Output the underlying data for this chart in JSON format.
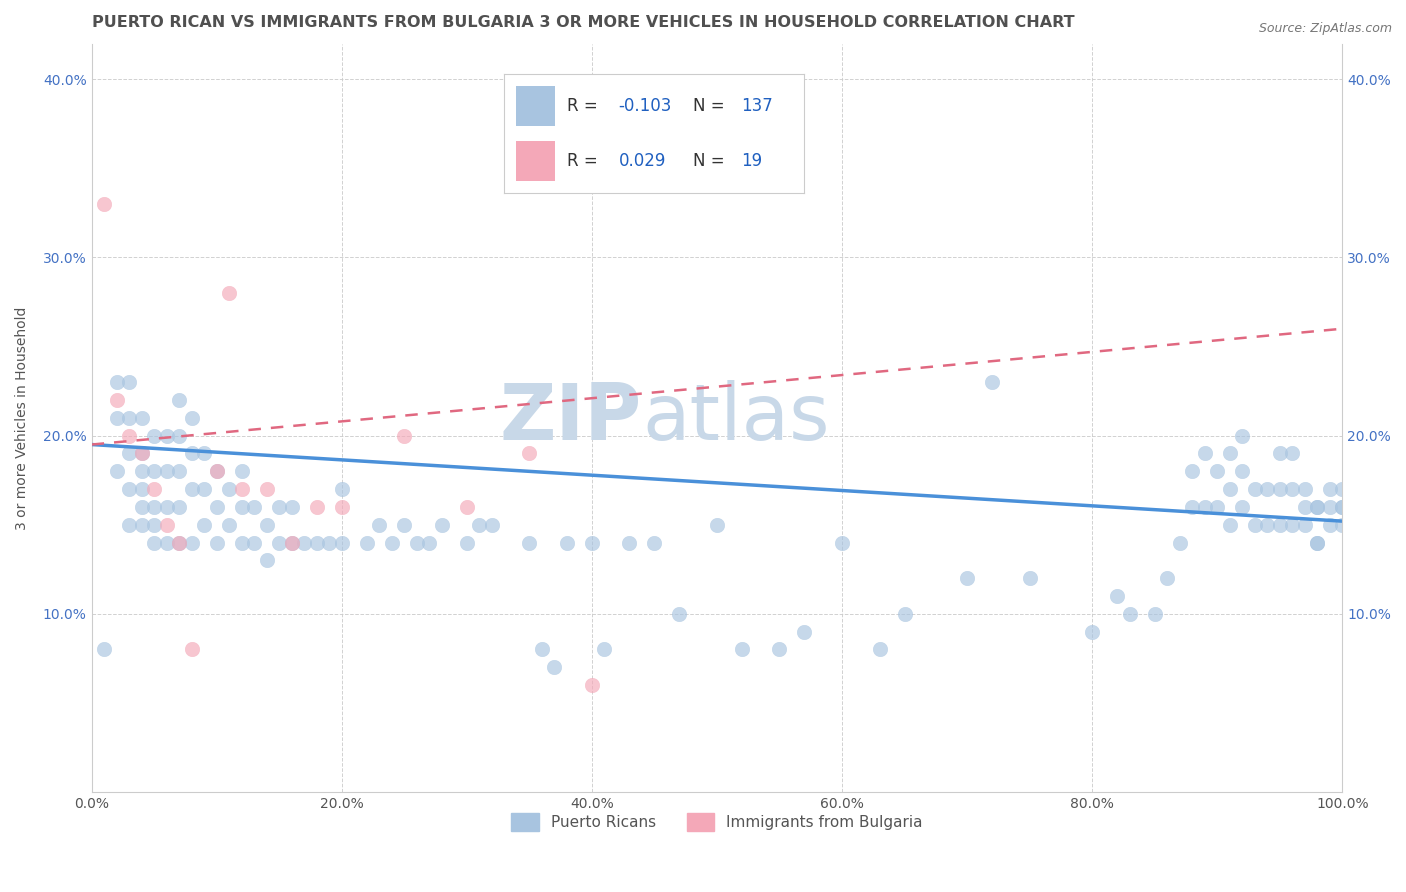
{
  "title": "PUERTO RICAN VS IMMIGRANTS FROM BULGARIA 3 OR MORE VEHICLES IN HOUSEHOLD CORRELATION CHART",
  "source": "Source: ZipAtlas.com",
  "ylabel": "3 or more Vehicles in Household",
  "xlim": [
    0.0,
    1.0
  ],
  "ylim": [
    0.0,
    0.42
  ],
  "xtick_vals": [
    0.0,
    0.2,
    0.4,
    0.6,
    0.8,
    1.0
  ],
  "xtick_labels": [
    "0.0%",
    "20.0%",
    "40.0%",
    "60.0%",
    "80.0%",
    "100.0%"
  ],
  "ytick_vals": [
    0.0,
    0.1,
    0.2,
    0.3,
    0.4
  ],
  "ytick_labels": [
    "",
    "10.0%",
    "20.0%",
    "30.0%",
    "40.0%"
  ],
  "blue_scatter_x": [
    0.01,
    0.02,
    0.02,
    0.02,
    0.03,
    0.03,
    0.03,
    0.03,
    0.03,
    0.04,
    0.04,
    0.04,
    0.04,
    0.04,
    0.04,
    0.05,
    0.05,
    0.05,
    0.05,
    0.05,
    0.06,
    0.06,
    0.06,
    0.06,
    0.07,
    0.07,
    0.07,
    0.07,
    0.07,
    0.08,
    0.08,
    0.08,
    0.08,
    0.09,
    0.09,
    0.09,
    0.1,
    0.1,
    0.1,
    0.11,
    0.11,
    0.12,
    0.12,
    0.12,
    0.13,
    0.13,
    0.14,
    0.14,
    0.15,
    0.15,
    0.16,
    0.16,
    0.17,
    0.18,
    0.19,
    0.2,
    0.2,
    0.22,
    0.23,
    0.24,
    0.25,
    0.26,
    0.27,
    0.28,
    0.3,
    0.31,
    0.32,
    0.35,
    0.36,
    0.37,
    0.38,
    0.4,
    0.41,
    0.43,
    0.45,
    0.47,
    0.5,
    0.52,
    0.55,
    0.57,
    0.6,
    0.63,
    0.65,
    0.7,
    0.72,
    0.75,
    0.8,
    0.82,
    0.83,
    0.85,
    0.86,
    0.87,
    0.88,
    0.88,
    0.89,
    0.89,
    0.9,
    0.9,
    0.91,
    0.91,
    0.91,
    0.92,
    0.92,
    0.92,
    0.93,
    0.93,
    0.94,
    0.94,
    0.95,
    0.95,
    0.95,
    0.96,
    0.96,
    0.96,
    0.97,
    0.97,
    0.97,
    0.98,
    0.98,
    0.98,
    0.98,
    0.99,
    0.99,
    0.99,
    1.0,
    1.0,
    1.0,
    1.0
  ],
  "blue_scatter_y": [
    0.08,
    0.18,
    0.21,
    0.23,
    0.17,
    0.19,
    0.21,
    0.15,
    0.23,
    0.15,
    0.17,
    0.19,
    0.21,
    0.16,
    0.18,
    0.14,
    0.16,
    0.18,
    0.2,
    0.15,
    0.14,
    0.16,
    0.18,
    0.2,
    0.14,
    0.16,
    0.18,
    0.2,
    0.22,
    0.14,
    0.17,
    0.19,
    0.21,
    0.15,
    0.17,
    0.19,
    0.14,
    0.16,
    0.18,
    0.15,
    0.17,
    0.14,
    0.16,
    0.18,
    0.14,
    0.16,
    0.13,
    0.15,
    0.14,
    0.16,
    0.14,
    0.16,
    0.14,
    0.14,
    0.14,
    0.14,
    0.17,
    0.14,
    0.15,
    0.14,
    0.15,
    0.14,
    0.14,
    0.15,
    0.14,
    0.15,
    0.15,
    0.14,
    0.08,
    0.07,
    0.14,
    0.14,
    0.08,
    0.14,
    0.14,
    0.1,
    0.15,
    0.08,
    0.08,
    0.09,
    0.14,
    0.08,
    0.1,
    0.12,
    0.23,
    0.12,
    0.09,
    0.11,
    0.1,
    0.1,
    0.12,
    0.14,
    0.16,
    0.18,
    0.16,
    0.19,
    0.16,
    0.18,
    0.15,
    0.17,
    0.19,
    0.16,
    0.18,
    0.2,
    0.15,
    0.17,
    0.15,
    0.17,
    0.15,
    0.17,
    0.19,
    0.15,
    0.17,
    0.19,
    0.15,
    0.17,
    0.16,
    0.14,
    0.16,
    0.14,
    0.16,
    0.15,
    0.17,
    0.16,
    0.15,
    0.17,
    0.16,
    0.16
  ],
  "pink_scatter_x": [
    0.01,
    0.02,
    0.03,
    0.04,
    0.05,
    0.06,
    0.07,
    0.08,
    0.1,
    0.11,
    0.12,
    0.14,
    0.16,
    0.18,
    0.2,
    0.25,
    0.3,
    0.35,
    0.4
  ],
  "pink_scatter_y": [
    0.33,
    0.22,
    0.2,
    0.19,
    0.17,
    0.15,
    0.14,
    0.08,
    0.18,
    0.28,
    0.17,
    0.17,
    0.14,
    0.16,
    0.16,
    0.2,
    0.16,
    0.19,
    0.06
  ],
  "blue_line_y0": 0.195,
  "blue_line_y1": 0.152,
  "pink_line_y0": 0.195,
  "pink_line_y1": 0.26,
  "scatter_blue_color": "#a8c4e0",
  "scatter_pink_color": "#f4a8b8",
  "line_blue_color": "#4a90d9",
  "line_pink_color": "#e06880",
  "watermark_zip": "ZIP",
  "watermark_atlas": "atlas",
  "watermark_color": "#c8d8e8",
  "legend_R_color": "#2060c0",
  "bottom_legend": [
    "Puerto Ricans",
    "Immigrants from Bulgaria"
  ],
  "title_color": "#505050",
  "title_fontsize": 11.5
}
